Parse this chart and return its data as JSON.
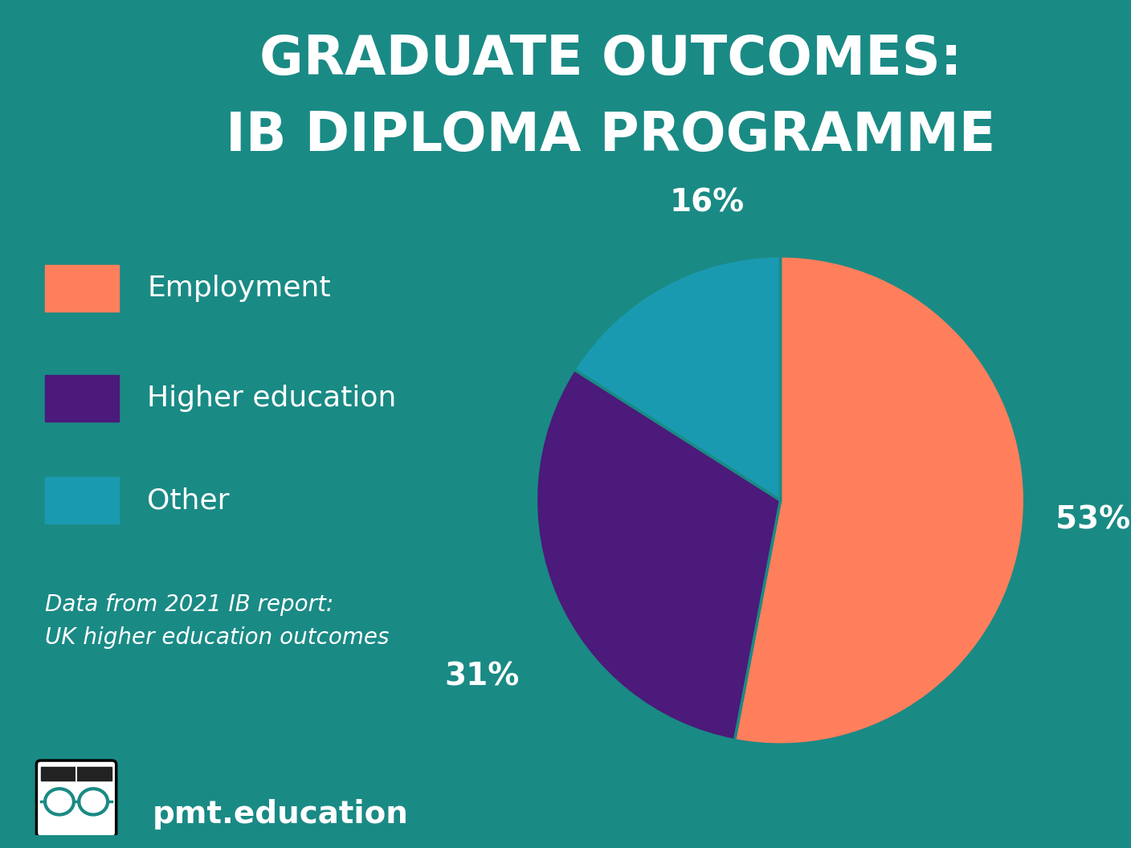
{
  "title_line1": "GRADUATE OUTCOMES:",
  "title_line2": "IB DIPLOMA PROGRAMME",
  "background_color": "#1a8a85",
  "slices": [
    53,
    31,
    16
  ],
  "labels": [
    "Employment",
    "Higher education",
    "Other"
  ],
  "colors": [
    "#ff7f5c",
    "#4b1a7a",
    "#1a9ab0"
  ],
  "pct_labels": [
    "53%",
    "31%",
    "16%"
  ],
  "legend_labels": [
    "Employment",
    "Higher education",
    "Other"
  ],
  "source_text": "Data from 2021 IB report:\nUK higher education outcomes",
  "brand_text": "pmt.education",
  "text_color": "#ffffff",
  "title_fontsize": 48,
  "legend_fontsize": 26,
  "pct_fontsize": 28,
  "source_fontsize": 20
}
